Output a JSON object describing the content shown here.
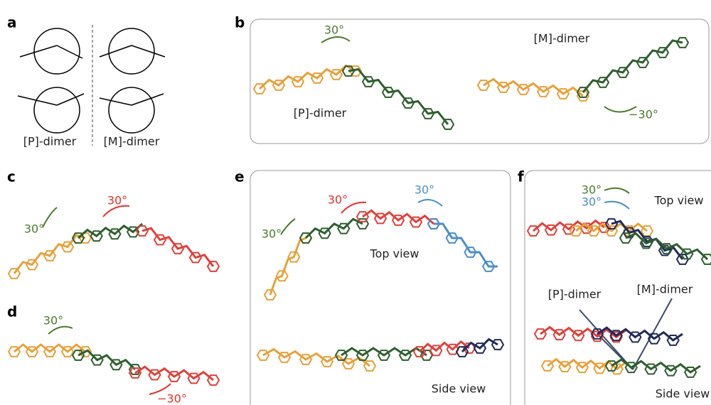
{
  "panels": {
    "a": {
      "label": "a",
      "captions": [
        "[P]-dimer",
        "[M]-dimer"
      ]
    },
    "b": {
      "label": "b",
      "texts": [
        "30°",
        "[M]-dimer",
        "[P]-dimer",
        "−30°"
      ]
    },
    "c": {
      "label": "c",
      "texts": [
        "30°",
        "30°"
      ]
    },
    "d": {
      "label": "d",
      "texts": [
        "30°",
        "−30°"
      ]
    },
    "e": {
      "label": "e",
      "texts": [
        "30°",
        "30°",
        "30°",
        "Top view",
        "Side view"
      ]
    },
    "f": {
      "label": "f",
      "texts": [
        "30°",
        "30°",
        "Top view",
        "[P]-dimer",
        "[M]-dimer",
        "Side view"
      ]
    }
  }
}
